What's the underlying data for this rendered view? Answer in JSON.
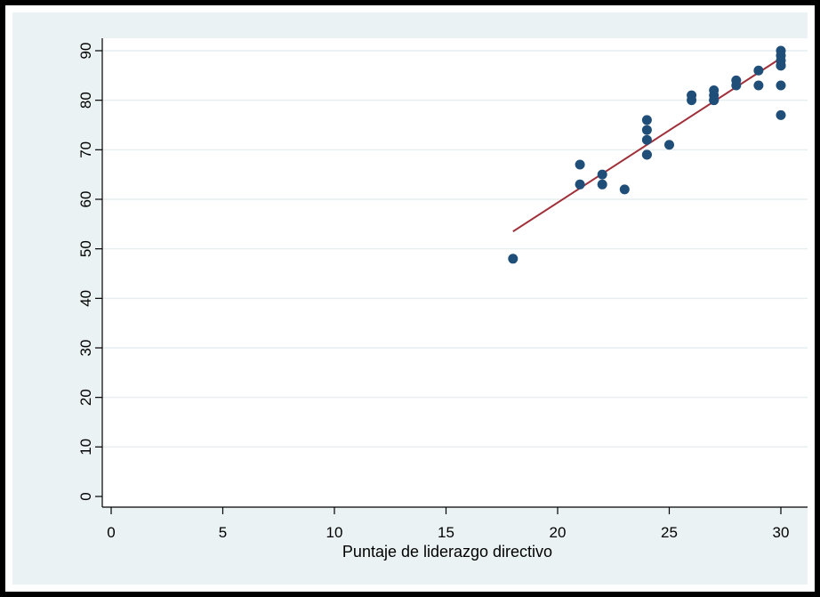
{
  "chart_data": {
    "type": "scatter",
    "title": "",
    "xlabel": "Puntaje de liderazgo directivo",
    "ylabel": "",
    "xlim": [
      0,
      30
    ],
    "ylim": [
      0,
      90
    ],
    "x_ticks": [
      "0",
      "5",
      "10",
      "15",
      "20",
      "25",
      "30"
    ],
    "y_ticks": [
      "0",
      "10",
      "20",
      "30",
      "40",
      "50",
      "60",
      "70",
      "80",
      "90"
    ],
    "grid": "horizontal",
    "colors": {
      "points": "#1f4e79",
      "fit_line": "#a0303a",
      "plot_background": "#ffffff",
      "outer_background": "#eaf2f3",
      "grid": "#e6eef0",
      "frame": "#000000"
    },
    "series": [
      {
        "kind": "points",
        "x": [
          18,
          21,
          21,
          22,
          22,
          23,
          24,
          24,
          24,
          24,
          24,
          25,
          26,
          26,
          27,
          27,
          27,
          27,
          28,
          28,
          29,
          29,
          30,
          30,
          30,
          30,
          30,
          30,
          30
        ],
        "y": [
          48,
          67,
          63,
          65,
          63,
          62,
          76,
          74,
          72,
          69,
          69,
          71,
          81,
          80,
          82,
          81,
          80,
          80,
          84,
          83,
          86,
          83,
          90,
          89,
          88,
          87,
          87,
          83,
          77
        ]
      },
      {
        "kind": "fit_line",
        "x": [
          18,
          30
        ],
        "y": [
          53.5,
          88.5
        ]
      }
    ]
  }
}
